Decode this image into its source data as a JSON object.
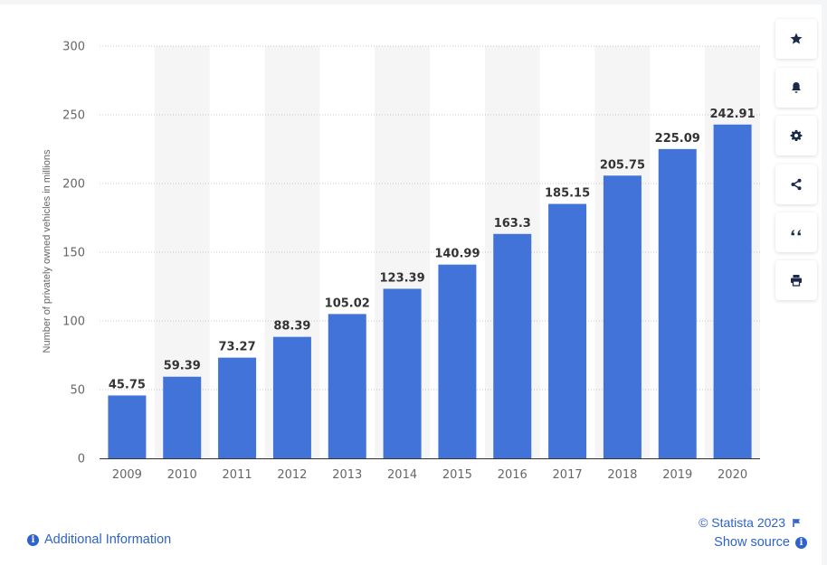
{
  "chart_data": {
    "type": "bar",
    "categories": [
      "2009",
      "2010",
      "2011",
      "2012",
      "2013",
      "2014",
      "2015",
      "2016",
      "2017",
      "2018",
      "2019",
      "2020"
    ],
    "values": [
      45.75,
      59.39,
      73.27,
      88.39,
      105.02,
      123.39,
      140.99,
      163.3,
      185.15,
      205.75,
      225.09,
      242.91
    ],
    "value_labels": [
      "45.75",
      "59.39",
      "73.27",
      "88.39",
      "105.02",
      "123.39",
      "140.99",
      "163.3",
      "185.15",
      "205.75",
      "225.09",
      "242.91"
    ],
    "title": "",
    "xlabel": "",
    "ylabel": "Number of privately owned vehicles in millions",
    "ylim": [
      0,
      300
    ],
    "yticks": [
      0,
      50,
      100,
      150,
      200,
      250,
      300
    ],
    "ytick_labels": [
      "0",
      "50",
      "100",
      "150",
      "200",
      "250",
      "300"
    ],
    "grid": true,
    "colors": {
      "bar": "#4173d9",
      "band": "#f5f5f5",
      "grid": "#c8c8c8"
    }
  },
  "sidebar": {
    "buttons": [
      {
        "name": "star-icon",
        "label": "star"
      },
      {
        "name": "bell-icon",
        "label": "bell"
      },
      {
        "name": "gear-icon",
        "label": "gear"
      },
      {
        "name": "share-icon",
        "label": "share"
      },
      {
        "name": "quote-icon",
        "label": "quote"
      },
      {
        "name": "print-icon",
        "label": "print"
      }
    ]
  },
  "footer": {
    "additional_info": "Additional Information",
    "copyright": "© Statista 2023",
    "show_source": "Show source"
  }
}
